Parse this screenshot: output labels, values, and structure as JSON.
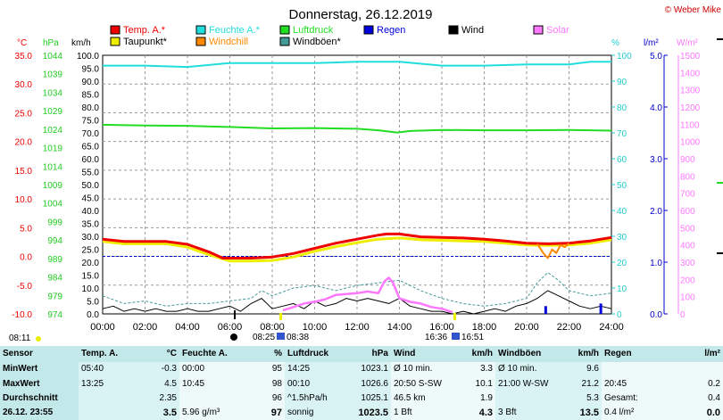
{
  "title": "Donnerstag, 26.12.2019",
  "credit": "© Weber Mike",
  "axes": {
    "left_units": [
      "°C",
      "hPa",
      "km/h"
    ],
    "right_units": [
      "%",
      "l/m²",
      "W/m²"
    ],
    "temp_ticks": [
      "35.0",
      "30.0",
      "25.0",
      "20.0",
      "15.0",
      "10.0",
      "5.0",
      "0.0",
      "-5.0",
      "-10.0"
    ],
    "pressure_ticks": [
      "1044",
      "1039",
      "1034",
      "1029",
      "1024",
      "1019",
      "1014",
      "1009",
      "1004",
      "999",
      "994",
      "989",
      "984",
      "979",
      "974"
    ],
    "wind_ticks": [
      "100.0",
      "95.0",
      "90.0",
      "85.0",
      "80.0",
      "75.0",
      "70.0",
      "65.0",
      "60.0",
      "55.0",
      "50.0",
      "45.0",
      "40.0",
      "35.0",
      "30.0",
      "25.0",
      "20.0",
      "15.0",
      "10.0",
      "5.0",
      "0.0"
    ],
    "humidity_ticks": [
      "100",
      "90",
      "80",
      "70",
      "60",
      "50",
      "40",
      "30",
      "20",
      "10",
      "0"
    ],
    "rain_ticks": [
      "5.0",
      "4.0",
      "3.0",
      "2.0",
      "1.0",
      "0.0"
    ],
    "solar_ticks": [
      "1500",
      "1400",
      "1300",
      "1200",
      "1100",
      "1000",
      "900",
      "800",
      "700",
      "600",
      "500",
      "400",
      "300",
      "200",
      "100",
      "0"
    ],
    "time_ticks": [
      "00:00",
      "02:00",
      "04:00",
      "06:00",
      "08:00",
      "10:00",
      "12:00",
      "14:00",
      "16:00",
      "18:00",
      "20:00",
      "22:00",
      "24:00"
    ]
  },
  "legend": [
    {
      "label": "Temp. A.*",
      "color": "#ee0000"
    },
    {
      "label": "Feuchte A.*",
      "color": "#22dddd"
    },
    {
      "label": "Luftdruck",
      "color": "#22dd22"
    },
    {
      "label": "Regen",
      "color": "#0000dd"
    },
    {
      "label": "Wind",
      "color": "#000000"
    },
    {
      "label": "Solar",
      "color": "#ff77ff"
    },
    {
      "label": "Taupunkt*",
      "color": "#eeee00"
    },
    {
      "label": "Windchill",
      "color": "#ff8800"
    },
    {
      "label": "Windböen*",
      "color": "#449999"
    }
  ],
  "sun": {
    "sunrise_label": "08:11",
    "dawn_label": "08:25",
    "dawn_end_label": "08:38",
    "dusk_label": "16:36",
    "sunset_label": "16:51"
  },
  "chart_data": {
    "type": "line",
    "x_unit": "hour",
    "xlim": [
      0,
      24
    ],
    "ylim_temp": [
      -10,
      35
    ],
    "ylim_pressure": [
      974,
      1044
    ],
    "ylim_wind": [
      0,
      100
    ],
    "ylim_humidity": [
      0,
      100
    ],
    "ylim_rain": [
      0,
      5
    ],
    "ylim_solar": [
      0,
      1500
    ],
    "series": [
      {
        "name": "Temp. A.*",
        "axis": "temp",
        "x": [
          0,
          1,
          2,
          3,
          4,
          5,
          5.67,
          6,
          7,
          8,
          9,
          10,
          11,
          12,
          13,
          13.4,
          14,
          15,
          16,
          17,
          18,
          19,
          20,
          21,
          22,
          22.5,
          23,
          24
        ],
        "y": [
          3.0,
          2.6,
          2.6,
          2.6,
          2.1,
          0.8,
          -0.3,
          -0.3,
          -0.3,
          -0.1,
          0.5,
          1.4,
          2.3,
          3.0,
          3.7,
          3.9,
          3.9,
          3.4,
          3.3,
          3.2,
          3.0,
          2.7,
          2.3,
          2.2,
          2.3,
          2.5,
          2.7,
          3.3
        ]
      },
      {
        "name": "Taupunkt*",
        "axis": "temp",
        "x": [
          0,
          1,
          2,
          3,
          4,
          5,
          6,
          7,
          8,
          9,
          10,
          11,
          12,
          13,
          14,
          15,
          16,
          17,
          18,
          19,
          20,
          21,
          22,
          23,
          24
        ],
        "y": [
          2.6,
          2.2,
          2.2,
          2.2,
          1.6,
          0.3,
          -0.8,
          -0.8,
          -0.7,
          -0.1,
          0.9,
          1.7,
          2.4,
          3.0,
          3.2,
          2.9,
          2.8,
          2.7,
          2.6,
          2.3,
          2.0,
          1.9,
          2.0,
          2.3,
          2.9
        ]
      },
      {
        "name": "Windchill",
        "axis": "temp",
        "x": [
          20.5,
          20.8,
          21,
          21.2,
          21.4,
          21.6,
          21.8,
          22
        ],
        "y": [
          2.2,
          0.5,
          -0.3,
          1.2,
          0.6,
          2.0,
          1.6,
          2.3
        ]
      },
      {
        "name": "Feuchte A.*",
        "axis": "humidity",
        "x": [
          0,
          2,
          4,
          6,
          8,
          10,
          12,
          14,
          16,
          18,
          20,
          22,
          23,
          24
        ],
        "y": [
          96,
          96,
          95.5,
          97,
          97,
          97,
          97.5,
          97.5,
          96,
          96,
          96.5,
          96.5,
          97.5,
          97.5
        ]
      },
      {
        "name": "Luftdruck",
        "axis": "pressure",
        "x": [
          0,
          2,
          4,
          6,
          8,
          10,
          12,
          13,
          13.9,
          14.5,
          16,
          18,
          20,
          22,
          24
        ],
        "y": [
          1025.2,
          1025.0,
          1024.9,
          1024.6,
          1024.2,
          1024.3,
          1024.1,
          1023.7,
          1023.1,
          1023.5,
          1023.8,
          1023.7,
          1023.7,
          1023.8,
          1023.6
        ]
      },
      {
        "name": "Windböen*",
        "axis": "wind",
        "x": [
          0,
          1,
          2,
          3,
          4,
          5,
          6,
          7,
          7.5,
          8,
          9,
          10,
          11,
          12,
          13,
          14,
          15,
          16,
          17,
          18,
          19,
          20,
          20.5,
          21,
          21.5,
          22,
          23,
          24
        ],
        "y": [
          7,
          4,
          5,
          3,
          4,
          4,
          5,
          6,
          9,
          7,
          10,
          11,
          9,
          11,
          12,
          13,
          9,
          6,
          4,
          3,
          4,
          6,
          12,
          16,
          13,
          9,
          7,
          8
        ]
      },
      {
        "name": "Wind",
        "axis": "wind",
        "x": [
          0,
          0.5,
          1,
          1.5,
          2,
          2.5,
          3,
          3.5,
          4,
          4.5,
          5,
          5.5,
          6,
          6.5,
          7,
          7.5,
          8,
          8.5,
          9,
          9.5,
          10,
          10.5,
          11,
          11.5,
          12,
          12.5,
          13,
          13.5,
          14,
          14.5,
          15,
          15.5,
          16,
          16.5,
          17,
          17.5,
          18,
          18.5,
          19,
          19.5,
          20,
          20.5,
          21,
          21.5,
          22,
          22.5,
          23,
          23.5,
          24
        ],
        "y": [
          2,
          3,
          1,
          2,
          1,
          2,
          1,
          1,
          2,
          1,
          1,
          2,
          3,
          1,
          4,
          6,
          2,
          3,
          4,
          2,
          5,
          3,
          4,
          6,
          5,
          6,
          5,
          4,
          6,
          3,
          2,
          1,
          1,
          0,
          1,
          0,
          1,
          2,
          1,
          3,
          4,
          6,
          9,
          7,
          5,
          3,
          2,
          3,
          2
        ]
      },
      {
        "name": "Solar",
        "axis": "solar",
        "x": [
          8.5,
          9,
          9.5,
          10,
          10.5,
          11,
          11.5,
          12,
          12.5,
          13,
          13.3,
          13.5,
          13.7,
          14,
          14.5,
          15,
          15.5,
          16,
          16.5
        ],
        "y": [
          20,
          40,
          60,
          70,
          85,
          110,
          115,
          120,
          130,
          120,
          190,
          210,
          180,
          90,
          70,
          60,
          40,
          30,
          10
        ]
      },
      {
        "name": "Regen",
        "axis": "rain",
        "x": [
          20.9,
          23.5
        ],
        "y": [
          0.15,
          0.2
        ]
      }
    ]
  },
  "stats": {
    "headers": [
      "Sensor",
      "Temp. A.",
      "°C",
      "Feuchte A.",
      "%",
      "Luftdruck",
      "hPa",
      "Wind",
      "km/h",
      "Windböen",
      "km/h",
      "Regen",
      "l/m²"
    ],
    "rows": [
      [
        "MinWert",
        "05:40",
        "-0.3",
        "00:00",
        "95",
        "14:25",
        "1023.1",
        "Ø 10 min.",
        "3.3",
        "Ø 10 min.",
        "9.6",
        "",
        ""
      ],
      [
        "MaxWert",
        "13:25",
        "4.5",
        "10:45",
        "98",
        "00:10",
        "1026.6",
        "20:50   S-SW",
        "10.1",
        "21:00   W-SW",
        "21.2",
        "20:45",
        "0.2"
      ],
      [
        "Durchschnitt",
        "",
        "2.35",
        "",
        "96",
        "^1.5hPa/h",
        "1025.1",
        "46.5 km",
        "1.9",
        "",
        "5.3",
        "Gesamt:",
        "0.4"
      ],
      [
        "26.12. 23:55",
        "",
        "3.5",
        "5.96 g/m³",
        "97",
        "sonnig",
        "1023.5",
        "1 Bft",
        "4.3",
        "3 Bft",
        "13.5",
        "0.4 l/m²",
        "0.0"
      ]
    ]
  }
}
